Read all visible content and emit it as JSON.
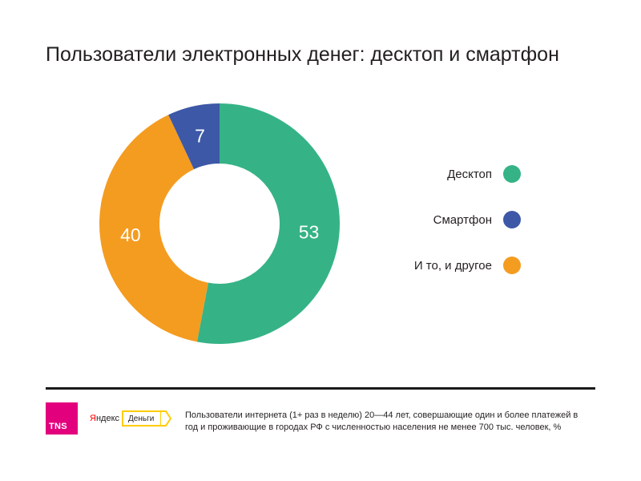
{
  "title": "Пользователи электронных денег: десктоп и смартфон",
  "chart_data": {
    "type": "pie",
    "variant": "donut",
    "categories": [
      "Десктоп",
      "Смартфон",
      "И то, и другое"
    ],
    "values": [
      53,
      7,
      40
    ],
    "colors": [
      "#35b386",
      "#3d58a6",
      "#f49c20"
    ],
    "start": "top",
    "direction": "clockwise",
    "order_clockwise": [
      0,
      2,
      1
    ],
    "legend_position": "right"
  },
  "legend": {
    "items": [
      {
        "label": "Десктоп",
        "color": "#35b386"
      },
      {
        "label": "Смартфон",
        "color": "#3d58a6"
      },
      {
        "label": "И то, и другое",
        "color": "#f49c20"
      }
    ]
  },
  "footer": {
    "tns_logo": "TNS",
    "yandex_logo": "Яндекс",
    "dengi_logo": "Деньги",
    "note": "Пользователи интернета (1+ раз в неделю) 20—44 лет, совершающие один и более платежей в год и проживающие в городах РФ с численностью населения не менее 700 тыс. человек, %"
  }
}
